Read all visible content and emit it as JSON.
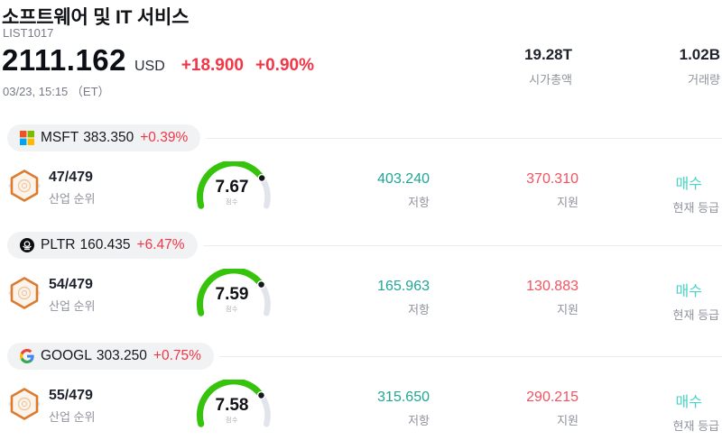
{
  "header": {
    "title": "소프트웨어 및 IT 서비스",
    "symbol": "LIST1017",
    "price": "2111.162",
    "currency": "USD",
    "change_abs": "+18.900",
    "change_pct": "+0.90%",
    "datetime": "03/23, 15:15 （ET）",
    "market_cap": {
      "value": "19.28T",
      "label": "시가총액"
    },
    "volume": {
      "value": "1.02B",
      "label": "거래량"
    }
  },
  "labels": {
    "rank": "산업 순위",
    "score": "점수",
    "resistance": "저항",
    "support": "지원",
    "rating": "현재 등급"
  },
  "colors": {
    "change_red": "#f23645",
    "up_teal": "#1fa695",
    "down_red": "#f5515f",
    "rating_cyan": "#47d3c6",
    "gauge_green": "#35c30c",
    "gauge_track": "#e1e4ea",
    "label_gray": "#8f939c",
    "pill_bg": "#f1f2f4",
    "divider": "#ebedf0"
  },
  "rows": [
    {
      "ticker": "MSFT",
      "price": "383.350",
      "change": "+0.39%",
      "logo": "microsoft",
      "rank": "47/479",
      "score": 7.67,
      "score_display": "7.67",
      "resistance": "403.240",
      "support": "370.310",
      "rating": "매수"
    },
    {
      "ticker": "PLTR",
      "price": "160.435",
      "change": "+6.47%",
      "logo": "palantir",
      "rank": "54/479",
      "score": 7.59,
      "score_display": "7.59",
      "resistance": "165.963",
      "support": "130.883",
      "rating": "매수"
    },
    {
      "ticker": "GOOGL",
      "price": "303.250",
      "change": "+0.75%",
      "logo": "google",
      "rank": "55/479",
      "score": 7.58,
      "score_display": "7.58",
      "resistance": "315.650",
      "support": "290.215",
      "rating": "매수"
    }
  ]
}
